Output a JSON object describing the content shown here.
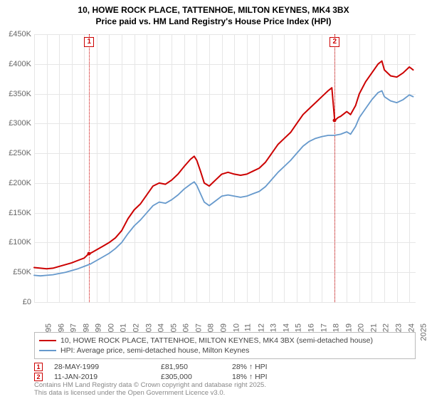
{
  "title_line1": "10, HOWE ROCK PLACE, TATTENHOE, MILTON KEYNES, MK4 3BX",
  "title_line2": "Price paid vs. HM Land Registry's House Price Index (HPI)",
  "chart": {
    "type": "line",
    "background_color": "#ffffff",
    "grid_color": "#e6e6e6",
    "axis_label_color": "#666666",
    "axis_fontsize": 11,
    "xlim": [
      1995,
      2025.5
    ],
    "ylim": [
      0,
      450000
    ],
    "y_ticks": [
      0,
      50000,
      100000,
      150000,
      200000,
      250000,
      300000,
      350000,
      400000,
      450000
    ],
    "y_tick_labels": [
      "£0",
      "£50K",
      "£100K",
      "£150K",
      "£200K",
      "£250K",
      "£300K",
      "£350K",
      "£400K",
      "£450K"
    ],
    "x_ticks": [
      1995,
      1996,
      1997,
      1998,
      1999,
      2000,
      2001,
      2002,
      2003,
      2004,
      2005,
      2006,
      2007,
      2008,
      2009,
      2010,
      2011,
      2012,
      2013,
      2014,
      2015,
      2016,
      2017,
      2018,
      2019,
      2020,
      2021,
      2022,
      2023,
      2024,
      2025
    ],
    "series": [
      {
        "id": "price_paid",
        "label": "10, HOWE ROCK PLACE, TATTENHOE, MILTON KEYNES, MK4 3BX (semi-detached house)",
        "color": "#cc0000",
        "line_width": 2,
        "data": [
          [
            1995.0,
            58000
          ],
          [
            1995.5,
            57000
          ],
          [
            1996.0,
            56000
          ],
          [
            1996.5,
            57000
          ],
          [
            1997.0,
            60000
          ],
          [
            1997.5,
            63000
          ],
          [
            1998.0,
            66000
          ],
          [
            1998.5,
            70000
          ],
          [
            1999.0,
            74000
          ],
          [
            1999.4,
            81950
          ],
          [
            1999.5,
            82000
          ],
          [
            2000.0,
            88000
          ],
          [
            2000.5,
            94000
          ],
          [
            2001.0,
            100000
          ],
          [
            2001.5,
            108000
          ],
          [
            2002.0,
            120000
          ],
          [
            2002.5,
            140000
          ],
          [
            2003.0,
            155000
          ],
          [
            2003.5,
            165000
          ],
          [
            2004.0,
            180000
          ],
          [
            2004.5,
            195000
          ],
          [
            2005.0,
            200000
          ],
          [
            2005.5,
            198000
          ],
          [
            2006.0,
            205000
          ],
          [
            2006.5,
            215000
          ],
          [
            2007.0,
            228000
          ],
          [
            2007.5,
            240000
          ],
          [
            2007.8,
            245000
          ],
          [
            2008.0,
            238000
          ],
          [
            2008.3,
            220000
          ],
          [
            2008.6,
            200000
          ],
          [
            2009.0,
            195000
          ],
          [
            2009.5,
            205000
          ],
          [
            2010.0,
            215000
          ],
          [
            2010.5,
            218000
          ],
          [
            2011.0,
            215000
          ],
          [
            2011.5,
            213000
          ],
          [
            2012.0,
            215000
          ],
          [
            2012.5,
            220000
          ],
          [
            2013.0,
            225000
          ],
          [
            2013.5,
            235000
          ],
          [
            2014.0,
            250000
          ],
          [
            2014.5,
            265000
          ],
          [
            2015.0,
            275000
          ],
          [
            2015.5,
            285000
          ],
          [
            2016.0,
            300000
          ],
          [
            2016.5,
            315000
          ],
          [
            2017.0,
            325000
          ],
          [
            2017.5,
            335000
          ],
          [
            2018.0,
            345000
          ],
          [
            2018.5,
            355000
          ],
          [
            2018.8,
            360000
          ],
          [
            2019.03,
            305000
          ],
          [
            2019.3,
            310000
          ],
          [
            2019.5,
            312000
          ],
          [
            2020.0,
            320000
          ],
          [
            2020.3,
            315000
          ],
          [
            2020.7,
            330000
          ],
          [
            2021.0,
            350000
          ],
          [
            2021.5,
            370000
          ],
          [
            2022.0,
            385000
          ],
          [
            2022.5,
            400000
          ],
          [
            2022.8,
            405000
          ],
          [
            2023.0,
            390000
          ],
          [
            2023.5,
            380000
          ],
          [
            2024.0,
            378000
          ],
          [
            2024.5,
            385000
          ],
          [
            2025.0,
            395000
          ],
          [
            2025.3,
            390000
          ]
        ]
      },
      {
        "id": "hpi",
        "label": "HPI: Average price, semi-detached house, Milton Keynes",
        "color": "#6699cc",
        "line_width": 1.8,
        "data": [
          [
            1995.0,
            45000
          ],
          [
            1995.5,
            44000
          ],
          [
            1996.0,
            45000
          ],
          [
            1996.5,
            46000
          ],
          [
            1997.0,
            48000
          ],
          [
            1997.5,
            50000
          ],
          [
            1998.0,
            53000
          ],
          [
            1998.5,
            56000
          ],
          [
            1999.0,
            60000
          ],
          [
            1999.5,
            64000
          ],
          [
            2000.0,
            70000
          ],
          [
            2000.5,
            76000
          ],
          [
            2001.0,
            82000
          ],
          [
            2001.5,
            90000
          ],
          [
            2002.0,
            100000
          ],
          [
            2002.5,
            115000
          ],
          [
            2003.0,
            128000
          ],
          [
            2003.5,
            138000
          ],
          [
            2004.0,
            150000
          ],
          [
            2004.5,
            162000
          ],
          [
            2005.0,
            168000
          ],
          [
            2005.5,
            166000
          ],
          [
            2006.0,
            172000
          ],
          [
            2006.5,
            180000
          ],
          [
            2007.0,
            190000
          ],
          [
            2007.5,
            198000
          ],
          [
            2007.8,
            202000
          ],
          [
            2008.0,
            196000
          ],
          [
            2008.3,
            182000
          ],
          [
            2008.6,
            168000
          ],
          [
            2009.0,
            162000
          ],
          [
            2009.5,
            170000
          ],
          [
            2010.0,
            178000
          ],
          [
            2010.5,
            180000
          ],
          [
            2011.0,
            178000
          ],
          [
            2011.5,
            176000
          ],
          [
            2012.0,
            178000
          ],
          [
            2012.5,
            182000
          ],
          [
            2013.0,
            186000
          ],
          [
            2013.5,
            194000
          ],
          [
            2014.0,
            206000
          ],
          [
            2014.5,
            218000
          ],
          [
            2015.0,
            228000
          ],
          [
            2015.5,
            238000
          ],
          [
            2016.0,
            250000
          ],
          [
            2016.5,
            262000
          ],
          [
            2017.0,
            270000
          ],
          [
            2017.5,
            275000
          ],
          [
            2018.0,
            278000
          ],
          [
            2018.5,
            280000
          ],
          [
            2019.0,
            280000
          ],
          [
            2019.5,
            282000
          ],
          [
            2020.0,
            286000
          ],
          [
            2020.3,
            282000
          ],
          [
            2020.7,
            295000
          ],
          [
            2021.0,
            310000
          ],
          [
            2021.5,
            325000
          ],
          [
            2022.0,
            340000
          ],
          [
            2022.5,
            352000
          ],
          [
            2022.8,
            355000
          ],
          [
            2023.0,
            345000
          ],
          [
            2023.5,
            338000
          ],
          [
            2024.0,
            335000
          ],
          [
            2024.5,
            340000
          ],
          [
            2025.0,
            348000
          ],
          [
            2025.3,
            345000
          ]
        ]
      }
    ],
    "sale_markers": [
      {
        "n": "1",
        "x": 1999.4,
        "y": 81950,
        "color": "#cc0000"
      },
      {
        "n": "2",
        "x": 2019.03,
        "y": 305000,
        "color": "#cc0000"
      }
    ]
  },
  "legend": {
    "border_color": "#bbbbbb"
  },
  "sales": [
    {
      "n": "1",
      "date": "28-MAY-1999",
      "price": "£81,950",
      "diff": "28% ↑ HPI",
      "color": "#cc0000"
    },
    {
      "n": "2",
      "date": "11-JAN-2019",
      "price": "£305,000",
      "diff": "18% ↑ HPI",
      "color": "#cc0000"
    }
  ],
  "disclaimer_line1": "Contains HM Land Registry data © Crown copyright and database right 2025.",
  "disclaimer_line2": "This data is licensed under the Open Government Licence v3.0."
}
